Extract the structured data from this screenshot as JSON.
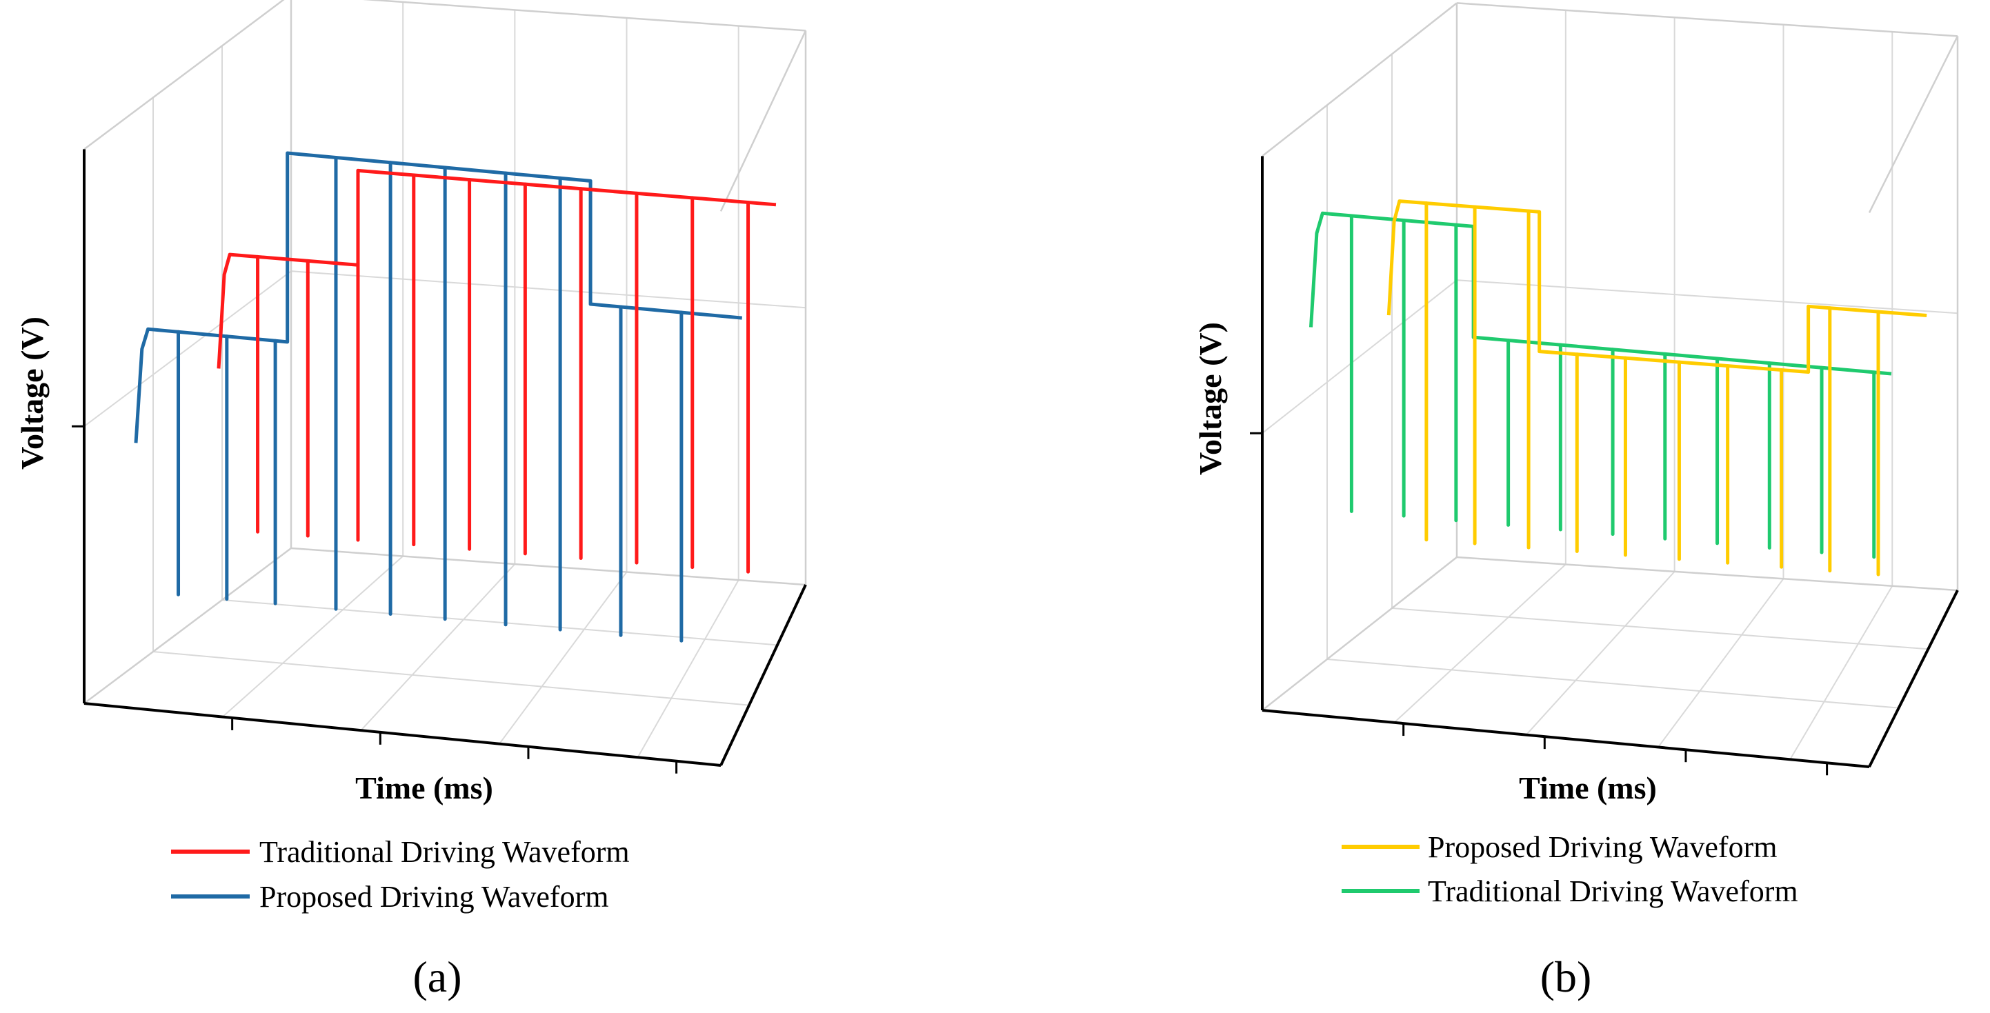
{
  "chart_data": [
    {
      "type": "line",
      "panel_label": "(a)",
      "xlabel": "Time (ms)",
      "ylabel": "Voltage (V)",
      "grid": true,
      "legend_position": "bottom",
      "series": [
        {
          "name": "Proposed Driving Waveform",
          "color": "#1f6aa5",
          "depth": 0.25,
          "levels": [
            {
              "t0": 0.0,
              "t1": 0.25,
              "v": 0.52
            },
            {
              "t0": 0.25,
              "t1": 0.75,
              "v": 0.98
            },
            {
              "t0": 0.75,
              "t1": 1.0,
              "v": 0.68
            }
          ],
          "spike_times": [
            0.07,
            0.15,
            0.23,
            0.33,
            0.42,
            0.51,
            0.61,
            0.7,
            0.8,
            0.9
          ],
          "spike_min": -0.12
        },
        {
          "name": "Traditional Driving Waveform",
          "color": "#ff1a1a",
          "depth": 0.65,
          "levels": [
            {
              "t0": 0.0,
              "t1": 0.25,
              "v": 0.55
            },
            {
              "t0": 0.25,
              "t1": 1.0,
              "v": 0.78
            }
          ],
          "spike_times": [
            0.07,
            0.16,
            0.25,
            0.35,
            0.45,
            0.55,
            0.65,
            0.75,
            0.85,
            0.95
          ],
          "spike_min": -0.12
        }
      ],
      "legend": [
        "Traditional Driving Waveform",
        "Proposed Driving Waveform"
      ]
    },
    {
      "type": "line",
      "panel_label": "(b)",
      "xlabel": "Time (ms)",
      "ylabel": "Voltage (V)",
      "grid": true,
      "legend_position": "bottom",
      "series": [
        {
          "name": "Traditional Driving Waveform",
          "color": "#1fca6e",
          "depth": 0.25,
          "levels": [
            {
              "t0": 0.0,
              "t1": 0.28,
              "v": 0.82
            },
            {
              "t0": 0.28,
              "t1": 1.0,
              "v": 0.55
            }
          ],
          "spike_times": [
            0.07,
            0.16,
            0.25,
            0.34,
            0.43,
            0.52,
            0.61,
            0.7,
            0.79,
            0.88,
            0.97
          ],
          "spike_min": 0.1
        },
        {
          "name": "Proposed Driving Waveform",
          "color": "#ffcc00",
          "depth": 0.65,
          "levels": [
            {
              "t0": 0.0,
              "t1": 0.28,
              "v": 0.7
            },
            {
              "t0": 0.28,
              "t1": 0.78,
              "v": 0.36
            },
            {
              "t0": 0.78,
              "t1": 1.0,
              "v": 0.52
            }
          ],
          "spike_times": [
            0.07,
            0.16,
            0.26,
            0.35,
            0.44,
            0.54,
            0.63,
            0.73,
            0.82,
            0.91
          ],
          "spike_min": -0.12
        }
      ],
      "legend": [
        "Proposed Driving Waveform",
        "Traditional Driving Waveform"
      ]
    }
  ]
}
